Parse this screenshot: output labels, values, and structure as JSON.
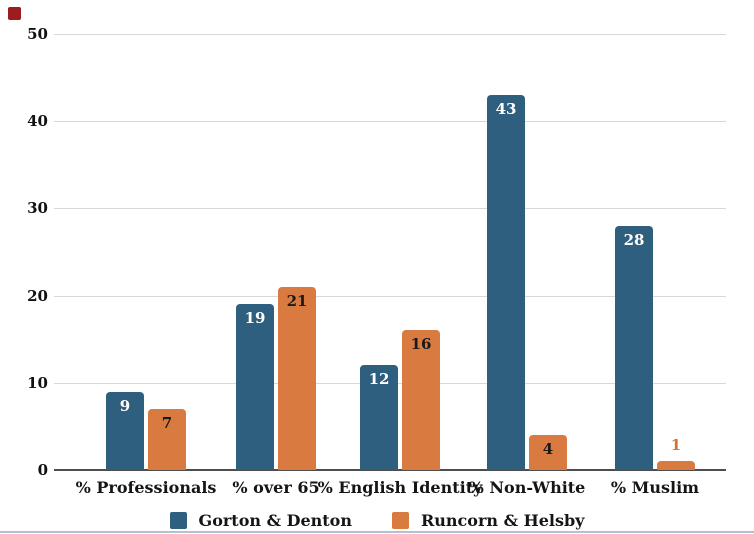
{
  "page": {
    "background": "#ffffff",
    "corner_marker_color": "#9b1d1d"
  },
  "chart_data": {
    "type": "bar",
    "title": "",
    "categories": [
      "% Professionals",
      "% over 65",
      "% English Identity",
      "% Non-White",
      "% Muslim"
    ],
    "series": [
      {
        "name": "Gorton & Denton",
        "color": "#2f5f7e",
        "values": [
          9,
          19,
          12,
          43,
          28
        ],
        "value_label_color": "#ffffff"
      },
      {
        "name": "Runcorn & Helsby",
        "color": "#d97b40",
        "values": [
          7,
          21,
          16,
          4,
          1
        ],
        "value_label_color": "#1a1a1a",
        "outside_label_color": "#d0742f"
      }
    ],
    "yticks": [
      0,
      10,
      20,
      30,
      40,
      50
    ],
    "ylim": [
      0,
      50
    ],
    "grid": "horizontal-only",
    "gridline_color": "#d8d8d8",
    "axis_line_color": "#4d4d4d",
    "legend_position": "bottom-center",
    "value_labels": "bold, inside top of bar; placed above bar in series color when bar is too short"
  }
}
